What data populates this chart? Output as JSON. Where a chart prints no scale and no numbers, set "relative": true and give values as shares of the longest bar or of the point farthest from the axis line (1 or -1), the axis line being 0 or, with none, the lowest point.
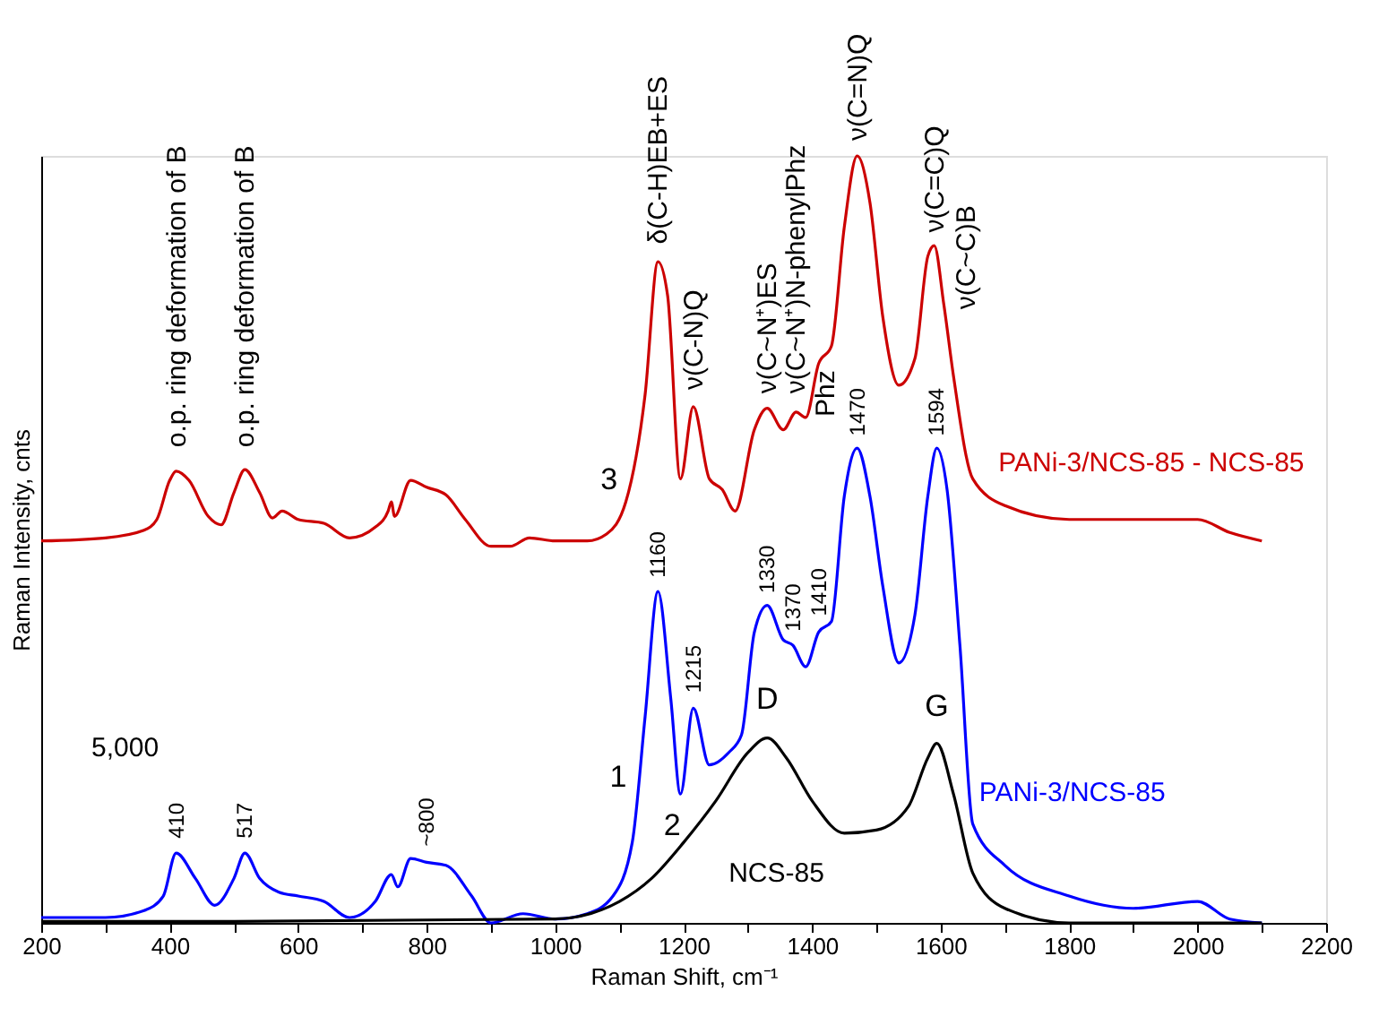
{
  "chart_data": {
    "type": "line",
    "relative": true,
    "xlabel": "Raman Shift, cm⁻¹",
    "ylabel": "Raman Intensity, cnts",
    "xlim": [
      200,
      2200
    ],
    "xticks": [
      200,
      {
        "value": 300,
        "label": null
      },
      400,
      {
        "value": 500,
        "label": null
      },
      600,
      {
        "value": 700,
        "label": null
      },
      800,
      {
        "value": 900,
        "label": null
      },
      1000,
      {
        "value": 1100,
        "label": null
      },
      1200,
      {
        "value": 1300,
        "label": null
      },
      1400,
      {
        "value": 1500,
        "label": null
      },
      1600,
      {
        "value": 1700,
        "label": null
      },
      1800,
      {
        "value": 1900,
        "label": null
      },
      2000,
      {
        "value": 2100,
        "label": null
      },
      2200
    ],
    "grid": false,
    "legend": false,
    "line_style": "solid",
    "marker": "none",
    "series": [
      {
        "name": "PANi-3/NCS-85 - NCS-85",
        "color": "#cc0000",
        "x": [
          200,
          300,
          360,
          380,
          400,
          410,
          430,
          460,
          480,
          500,
          517,
          540,
          560,
          575,
          600,
          640,
          680,
          720,
          740,
          745,
          750,
          775,
          800,
          830,
          860,
          900,
          930,
          960,
          1000,
          1050,
          1080,
          1110,
          1140,
          1160,
          1175,
          1195,
          1215,
          1240,
          1260,
          1280,
          1310,
          1330,
          1355,
          1375,
          1390,
          1410,
          1430,
          1450,
          1470,
          1490,
          1510,
          1535,
          1560,
          1580,
          1590,
          1605,
          1620,
          1650,
          1700,
          1800,
          1900,
          2000,
          2050,
          2100
        ],
        "values": [
          0.498,
          0.502,
          0.512,
          0.526,
          0.577,
          0.589,
          0.577,
          0.53,
          0.519,
          0.561,
          0.591,
          0.561,
          0.528,
          0.537,
          0.526,
          0.521,
          0.502,
          0.516,
          0.537,
          0.549,
          0.53,
          0.577,
          0.568,
          0.558,
          0.526,
          0.491,
          0.491,
          0.502,
          0.498,
          0.498,
          0.507,
          0.549,
          0.689,
          0.862,
          0.818,
          0.579,
          0.673,
          0.579,
          0.565,
          0.537,
          0.643,
          0.671,
          0.643,
          0.666,
          0.659,
          0.729,
          0.752,
          0.907,
          1,
          0.939,
          0.79,
          0.701,
          0.736,
          0.869,
          0.883,
          0.806,
          0.713,
          0.579,
          0.544,
          0.526,
          0.526,
          0.526,
          0.509,
          0.498
        ]
      },
      {
        "name": "PANi-3/NCS-85",
        "color": "#0000ff",
        "x": [
          200,
          300,
          360,
          390,
          410,
          440,
          470,
          500,
          517,
          540,
          570,
          600,
          640,
          680,
          720,
          745,
          755,
          775,
          800,
          830,
          870,
          900,
          950,
          1000,
          1050,
          1090,
          1120,
          1140,
          1160,
          1180,
          1195,
          1215,
          1240,
          1270,
          1290,
          1310,
          1330,
          1355,
          1370,
          1390,
          1410,
          1430,
          1450,
          1470,
          1490,
          1510,
          1535,
          1560,
          1580,
          1594,
          1610,
          1630,
          1650,
          1700,
          1800,
          1900,
          2000,
          2050,
          2100
        ],
        "values": [
          0.007,
          0.007,
          0.016,
          0.035,
          0.091,
          0.058,
          0.023,
          0.058,
          0.091,
          0.058,
          0.04,
          0.035,
          0.028,
          0.007,
          0.028,
          0.063,
          0.047,
          0.084,
          0.079,
          0.075,
          0.035,
          0,
          0.012,
          0.005,
          0.012,
          0.035,
          0.105,
          0.269,
          0.432,
          0.292,
          0.168,
          0.28,
          0.206,
          0.222,
          0.245,
          0.379,
          0.414,
          0.369,
          0.362,
          0.334,
          0.379,
          0.393,
          0.556,
          0.619,
          0.556,
          0.439,
          0.339,
          0.402,
          0.556,
          0.619,
          0.565,
          0.362,
          0.129,
          0.075,
          0.035,
          0.019,
          0.028,
          0.005,
          0
        ]
      },
      {
        "name": "NCS-85",
        "color": "#000000",
        "x": [
          200,
          500,
          1000,
          1100,
          1150,
          1200,
          1250,
          1300,
          1330,
          1360,
          1400,
          1450,
          1500,
          1550,
          1580,
          1594,
          1620,
          1650,
          1700,
          1800,
          2100
        ],
        "values": [
          0.002,
          0.002,
          0.005,
          0.028,
          0.058,
          0.105,
          0.159,
          0.222,
          0.241,
          0.215,
          0.159,
          0.117,
          0.121,
          0.152,
          0.215,
          0.234,
          0.168,
          0.065,
          0.019,
          0,
          0
        ]
      }
    ],
    "annotations": [
      "o.p. ring deformation of B",
      "o.p. ring deformation of B",
      "δ(C-H)EB+ES",
      "ν(C-N)Q",
      "ν(C~N⁺)ES",
      "ν(C~N⁺)N-phenylPhz",
      "Phz",
      "ν(C=N)Q",
      "ν(C=C)Q",
      "ν(C~C)B",
      "410",
      "517",
      "~800",
      "1160",
      "1215",
      "1330",
      "1370",
      "1410",
      "1470",
      "1594",
      "D",
      "G",
      "1",
      "2",
      "3",
      "5,000"
    ]
  }
}
